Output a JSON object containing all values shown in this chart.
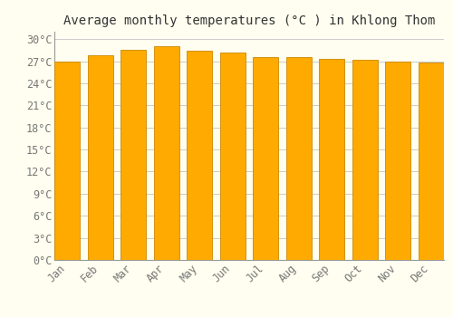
{
  "title": "Average monthly temperatures (°C ) in Khlong Thom",
  "months": [
    "Jan",
    "Feb",
    "Mar",
    "Apr",
    "May",
    "Jun",
    "Jul",
    "Aug",
    "Sep",
    "Oct",
    "Nov",
    "Dec"
  ],
  "values": [
    27.0,
    27.8,
    28.5,
    29.0,
    28.4,
    28.2,
    27.6,
    27.6,
    27.3,
    27.2,
    27.0,
    26.8
  ],
  "bar_color": "#FFAA00",
  "bar_edge_color": "#CC8800",
  "background_color": "#FFFEF0",
  "grid_color": "#CCCCCC",
  "ytick_labels": [
    "0°C",
    "3°C",
    "6°C",
    "9°C",
    "12°C",
    "15°C",
    "18°C",
    "21°C",
    "24°C",
    "27°C",
    "30°C"
  ],
  "ytick_values": [
    0,
    3,
    6,
    9,
    12,
    15,
    18,
    21,
    24,
    27,
    30
  ],
  "ylim": [
    0,
    31
  ],
  "title_fontsize": 10,
  "tick_fontsize": 8.5,
  "font_family": "monospace",
  "bar_width": 0.78
}
